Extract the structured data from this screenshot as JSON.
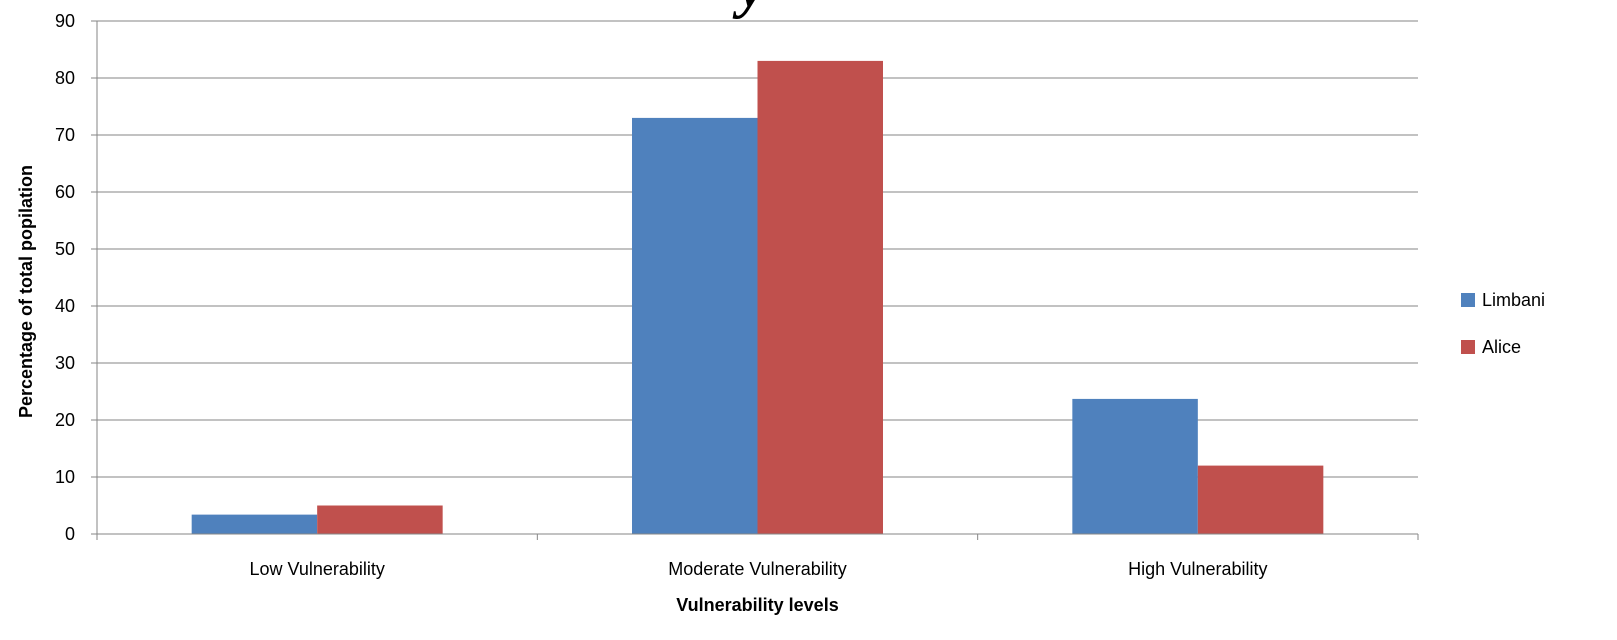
{
  "chart_data": {
    "type": "bar",
    "title_fragment": "y",
    "xlabel": "Vulnerability levels",
    "ylabel": "Percentage of total popilation",
    "categories": [
      "Low Vulnerability",
      "Moderate Vulnerability",
      "High Vulnerability"
    ],
    "series": [
      {
        "name": "Limbani",
        "values": [
          3.4,
          73,
          23.7
        ],
        "color": "#4F81BD"
      },
      {
        "name": "Alice",
        "values": [
          5,
          83,
          12
        ],
        "color": "#C0504D"
      }
    ],
    "ylim": [
      0,
      90
    ],
    "yticks": [
      0,
      10,
      20,
      30,
      40,
      50,
      60,
      70,
      80,
      90
    ],
    "grid": true,
    "legend_position": "right"
  }
}
